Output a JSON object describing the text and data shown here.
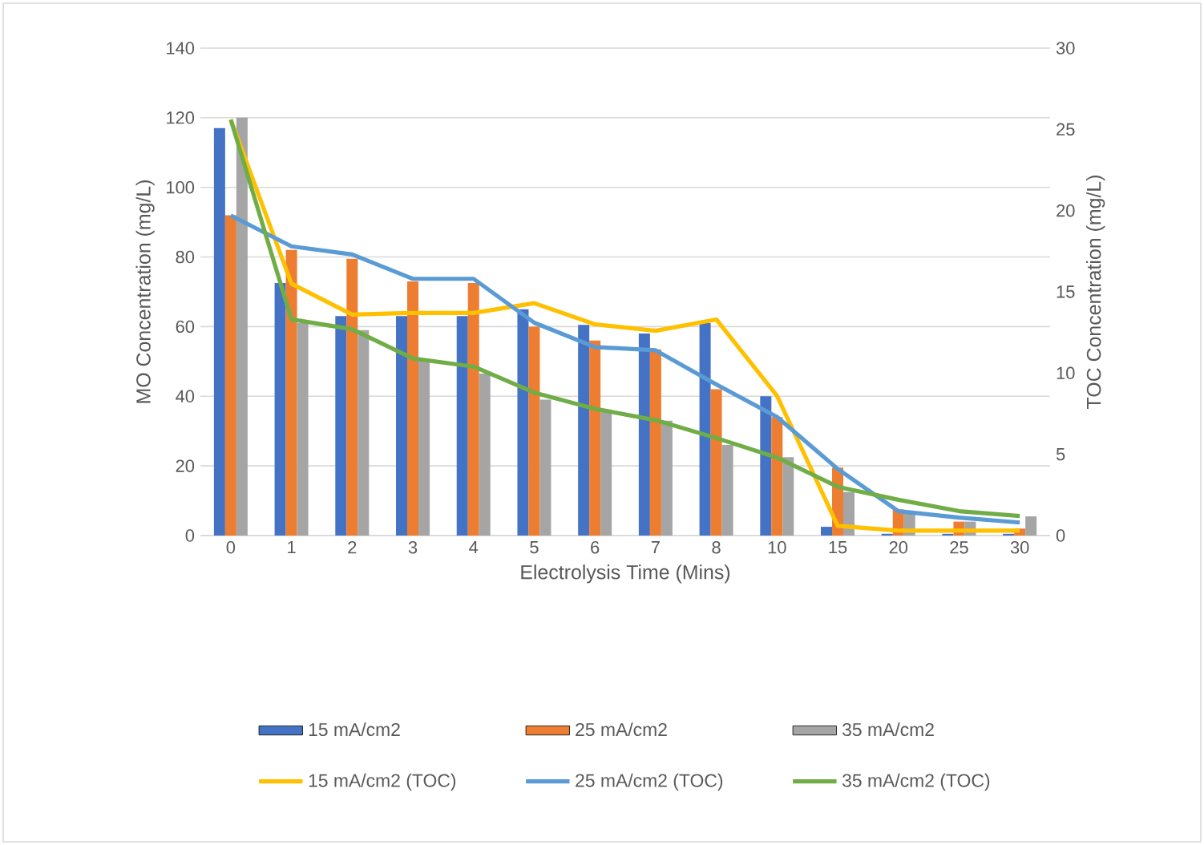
{
  "chart_data": {
    "type": "bar",
    "xlabel": "Electrolysis Time (Mins)",
    "ylabel": "MO Concentration (mg/L)",
    "y2label": "TOC Concentration (mg/L)",
    "categories": [
      "0",
      "1",
      "2",
      "3",
      "4",
      "5",
      "6",
      "7",
      "8",
      "10",
      "15",
      "20",
      "25",
      "30"
    ],
    "ylim": [
      0,
      140
    ],
    "yticks": [
      0,
      20,
      40,
      60,
      80,
      100,
      120,
      140
    ],
    "y2lim": [
      0,
      30
    ],
    "y2ticks": [
      0,
      5,
      10,
      15,
      20,
      25,
      30
    ],
    "grid": "y",
    "legend": "bottom",
    "marker": "none",
    "line_style": "solid",
    "series": [
      {
        "name": "15 mA/cm2",
        "color": "#4472c4",
        "values": [
          117,
          72.5,
          63,
          63,
          63,
          65,
          60.5,
          58,
          61,
          40,
          2.5,
          0.5,
          0.5,
          0.5
        ]
      },
      {
        "name": "25 mA/cm2",
        "color": "#ed7d31",
        "values": [
          92,
          82,
          79.5,
          73,
          72.5,
          60,
          56,
          53.5,
          42,
          34,
          19.5,
          7.5,
          4,
          2
        ]
      },
      {
        "name": "35 mA/cm2",
        "color": "#a5a5a5",
        "values": [
          120,
          61,
          59,
          50,
          46.5,
          39,
          36,
          33,
          26,
          22.5,
          12.5,
          6.5,
          4,
          5.5
        ]
      },
      {
        "name": "15 mA/cm2 (TOC)",
        "type": "line",
        "axis": "y2",
        "color": "#ffc000",
        "values": [
          25.6,
          15.5,
          13.6,
          13.7,
          13.7,
          14.3,
          13,
          12.6,
          13.3,
          8.6,
          0.6,
          0.3,
          0.3,
          0.3
        ]
      },
      {
        "name": "25 mA/cm2 (TOC)",
        "type": "line",
        "axis": "y2",
        "color": "#5b9bd5",
        "values": [
          19.7,
          17.8,
          17.3,
          15.8,
          15.8,
          13.1,
          11.6,
          11.4,
          9.3,
          7.3,
          4.1,
          1.5,
          1.1,
          0.8
        ]
      },
      {
        "name": "35 mA/cm2 (TOC)",
        "type": "line",
        "axis": "y2",
        "color": "#70ad47",
        "values": [
          25.6,
          13.3,
          12.7,
          10.9,
          10.4,
          8.8,
          7.8,
          7.1,
          6.0,
          4.8,
          3.0,
          2.2,
          1.5,
          1.2
        ]
      }
    ]
  }
}
